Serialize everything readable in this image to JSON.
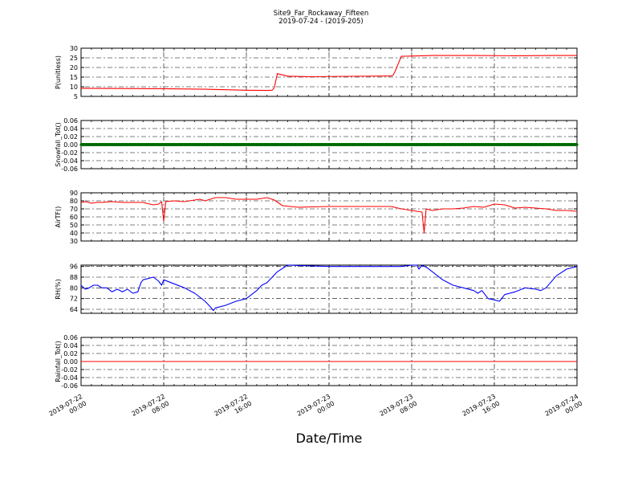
{
  "figure": {
    "title_line1": "Site9_Far_Rockaway_Fifteen",
    "title_line2": "2019-07-24 - (2019-205)",
    "xlabel": "Date/Time",
    "x_tick_labels": [
      [
        "2019-07-22",
        "00:00"
      ],
      [
        "2019-07-22",
        "08:00"
      ],
      [
        "2019-07-22",
        "16:00"
      ],
      [
        "2019-07-23",
        "00:00"
      ],
      [
        "2019-07-23",
        "08:00"
      ],
      [
        "2019-07-23",
        "16:00"
      ],
      [
        "2019-07-24",
        "00:00"
      ]
    ]
  },
  "chart_data": [
    {
      "type": "line",
      "ylabel": "P(unitless)",
      "color": "#ff0000",
      "ylim": [
        5,
        30
      ],
      "yticks": [
        5,
        10,
        15,
        20,
        25,
        30
      ],
      "ytick_labels": [
        "5",
        "10",
        "15",
        "20",
        "25",
        "30"
      ],
      "x_hours": [
        0,
        4,
        8,
        12,
        16,
        18,
        18.5,
        18.7,
        19,
        20,
        22,
        26,
        30,
        30.2,
        30.4,
        31,
        34,
        38,
        42,
        46,
        48
      ],
      "y": [
        9.2,
        9.1,
        9.0,
        8.7,
        8.2,
        8.1,
        8.2,
        9.5,
        16.8,
        15.5,
        15.2,
        15.4,
        15.6,
        16.0,
        18.0,
        25.8,
        26.2,
        26.2,
        26.1,
        26.2,
        26.2
      ]
    },
    {
      "type": "line",
      "ylabel": "Snowfall_Tot()",
      "color": "#008000",
      "ylim": [
        -0.06,
        0.06
      ],
      "yticks": [
        -0.06,
        -0.04,
        -0.02,
        0.0,
        0.02,
        0.04,
        0.06
      ],
      "ytick_labels": [
        "-0.06",
        "-0.04",
        "-0.02",
        "0.00",
        "0.02",
        "0.04",
        "0.06"
      ],
      "x_hours": [
        0,
        48
      ],
      "y": [
        0,
        0
      ]
    },
    {
      "type": "line",
      "ylabel": "AirTF()",
      "color": "#ff0000",
      "ylim": [
        30,
        90
      ],
      "yticks": [
        30,
        40,
        50,
        60,
        70,
        80,
        90
      ],
      "ytick_labels": [
        "30",
        "40",
        "50",
        "60",
        "70",
        "80",
        "90"
      ],
      "x_hours": [
        0,
        0.5,
        1,
        1.5,
        2,
        3,
        4,
        5,
        6,
        7,
        7.5,
        7.8,
        8.0,
        8.2,
        9,
        10,
        11,
        11.5,
        12,
        13,
        14,
        15,
        16,
        17,
        18,
        18.7,
        19.5,
        21,
        24,
        27,
        28,
        29,
        30,
        31,
        32,
        33,
        33.2,
        33.4,
        34,
        35,
        36,
        37,
        38,
        39,
        40,
        41,
        42,
        43,
        44,
        45,
        46,
        47,
        48
      ],
      "y": [
        78,
        79,
        77,
        78,
        78,
        79,
        78,
        78,
        78,
        75,
        76,
        79,
        55,
        79,
        80,
        79,
        81,
        82,
        80,
        84,
        84,
        82,
        82,
        82,
        84,
        81,
        74,
        72,
        73,
        73,
        73,
        73,
        73,
        70,
        68,
        66,
        40,
        70,
        68,
        70,
        70,
        71,
        73,
        72,
        76,
        75,
        71,
        72,
        71,
        70,
        68,
        68,
        67
      ]
    },
    {
      "type": "line",
      "ylabel": "RH(%)",
      "color": "#0000ff",
      "ylim": [
        61,
        97
      ],
      "yticks": [
        64,
        72,
        80,
        88,
        96
      ],
      "ytick_labels": [
        "64",
        "72",
        "80",
        "88",
        "96"
      ],
      "x_hours": [
        0,
        0.4,
        0.8,
        1.2,
        1.6,
        2,
        2.5,
        3,
        3.5,
        4,
        4.5,
        5,
        5.5,
        5.8,
        6,
        7,
        7.5,
        7.8,
        8,
        9,
        10,
        11,
        11.5,
        12,
        12.5,
        12.8,
        13,
        14,
        15,
        16,
        16.5,
        17,
        17.5,
        18,
        19,
        20,
        24,
        27,
        30,
        31,
        32,
        32.5,
        32.7,
        33,
        33.5,
        34,
        35,
        36,
        37,
        38,
        38.4,
        38.8,
        39.4,
        40,
        40.5,
        41,
        42,
        43,
        44,
        44.5,
        45,
        46,
        47,
        48
      ],
      "y": [
        82,
        79,
        80,
        82,
        82,
        80,
        80,
        77,
        79,
        77,
        79,
        76,
        77,
        84,
        86,
        88,
        85,
        82,
        86,
        83,
        80,
        76,
        73,
        70,
        66,
        63,
        65,
        67,
        70,
        72,
        75,
        78,
        82,
        84,
        92,
        97,
        96,
        96,
        96,
        96,
        97,
        97,
        94,
        97,
        95,
        92,
        86,
        82,
        80,
        78,
        76,
        78,
        72,
        71,
        70,
        75,
        77,
        80,
        79,
        78,
        80,
        89,
        94,
        96
      ]
    },
    {
      "type": "line",
      "ylabel": "Rainfall_Tot()",
      "color": "#ff0000",
      "ylim": [
        -0.06,
        0.06
      ],
      "yticks": [
        -0.06,
        -0.04,
        -0.02,
        0.0,
        0.02,
        0.04,
        0.06
      ],
      "ytick_labels": [
        "-0.06",
        "-0.04",
        "-0.02",
        "0.00",
        "0.02",
        "0.04",
        "0.06"
      ],
      "x_hours": [
        0,
        48
      ],
      "y": [
        0,
        0
      ]
    }
  ]
}
